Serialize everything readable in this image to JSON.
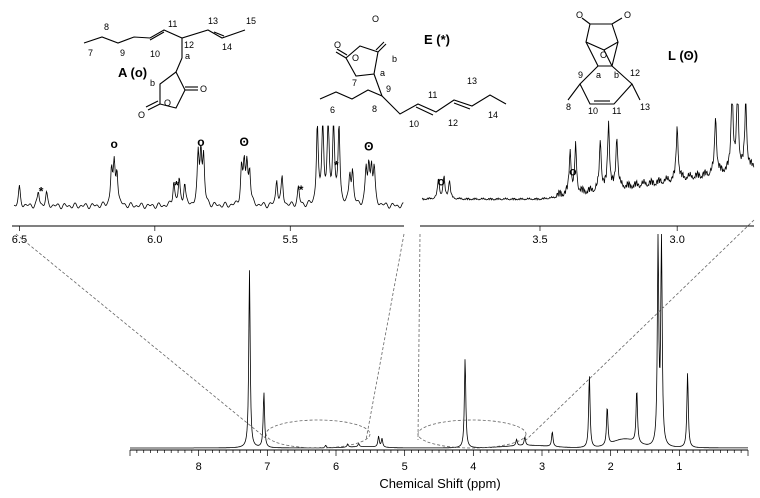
{
  "chart_data": {
    "type": "line",
    "xlabel": "Chemical Shift (ppm)",
    "x_reversed": true,
    "main_spectrum": {
      "xlim": [
        9,
        0
      ],
      "x_ticks": [
        "8",
        "7",
        "6",
        "5",
        "4",
        "3",
        "2",
        "1"
      ],
      "peaks": [
        {
          "ppm": 7.26,
          "rel_height": 0.83
        },
        {
          "ppm": 7.05,
          "rel_height": 0.26
        },
        {
          "ppm": 5.38,
          "rel_height": 0.05
        },
        {
          "ppm": 5.33,
          "rel_height": 0.04
        },
        {
          "ppm": 5.67,
          "rel_height": 0.015
        },
        {
          "ppm": 5.83,
          "rel_height": 0.015
        },
        {
          "ppm": 6.15,
          "rel_height": 0.012
        },
        {
          "ppm": 4.12,
          "rel_height": 0.42
        },
        {
          "ppm": 3.37,
          "rel_height": 0.03
        },
        {
          "ppm": 3.25,
          "rel_height": 0.04
        },
        {
          "ppm": 2.85,
          "rel_height": 0.07
        },
        {
          "ppm": 2.31,
          "rel_height": 0.34
        },
        {
          "ppm": 2.05,
          "rel_height": 0.18
        },
        {
          "ppm": 1.62,
          "rel_height": 0.25
        },
        {
          "ppm": 1.31,
          "rel_height": 0.95
        },
        {
          "ppm": 1.26,
          "rel_height": 0.98
        },
        {
          "ppm": 0.88,
          "rel_height": 0.35
        }
      ]
    },
    "inset_left": {
      "xlim": [
        6.52,
        5.08
      ],
      "x_ticks": [
        "6.5",
        "6.0",
        "5.5"
      ],
      "markers": [
        {
          "ppm": 6.42,
          "symbol": "*"
        },
        {
          "ppm": 6.15,
          "symbol": "o"
        },
        {
          "ppm": 5.92,
          "symbol": "*"
        },
        {
          "ppm": 5.83,
          "symbol": "o"
        },
        {
          "ppm": 5.67,
          "symbol": "ʘ"
        },
        {
          "ppm": 5.46,
          "symbol": "*"
        },
        {
          "ppm": 5.33,
          "symbol": "*"
        },
        {
          "ppm": 5.21,
          "symbol": "ʘ"
        }
      ]
    },
    "inset_right": {
      "xlim": [
        3.93,
        2.72
      ],
      "x_ticks": [
        "3.5",
        "3.0"
      ],
      "markers": [
        {
          "ppm": 3.86,
          "symbol": "o"
        },
        {
          "ppm": 3.38,
          "symbol": "o"
        }
      ]
    },
    "structures": [
      {
        "name": "A",
        "symbol": "(o)",
        "label": "A (o)",
        "atom_labels": [
          "7",
          "8",
          "9",
          "10",
          "11",
          "12",
          "13",
          "14",
          "15",
          "a",
          "b"
        ]
      },
      {
        "name": "E",
        "symbol": "(*)",
        "label": "E (*)",
        "atom_labels": [
          "6",
          "7",
          "8",
          "9",
          "10",
          "11",
          "12",
          "13",
          "14",
          "a",
          "b"
        ]
      },
      {
        "name": "L",
        "symbol": "(ʘ)",
        "label": "L (ʘ)",
        "atom_labels": [
          "8",
          "9",
          "10",
          "11",
          "12",
          "13",
          "a",
          "b"
        ]
      }
    ]
  }
}
